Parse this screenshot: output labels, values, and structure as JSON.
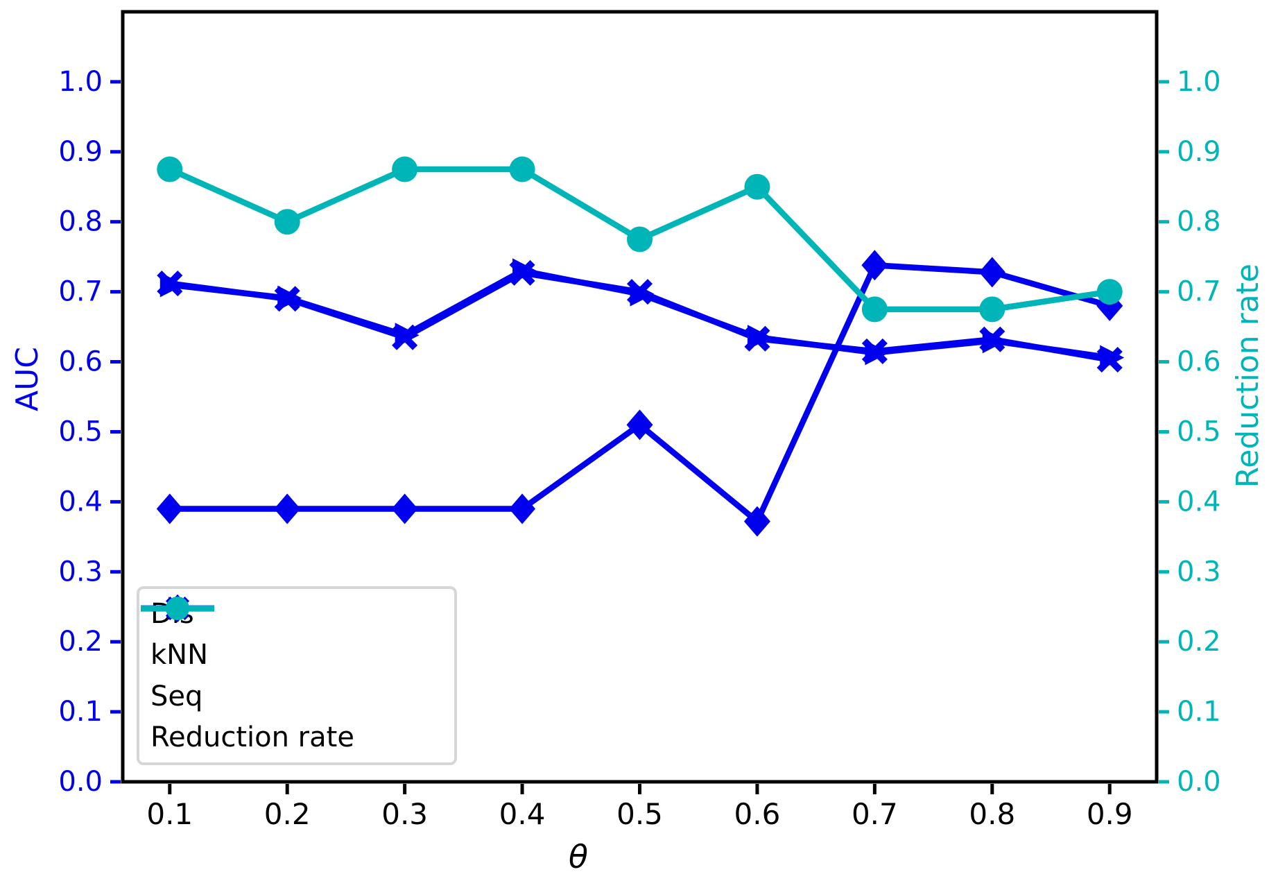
{
  "figure": {
    "background": "#ffffff",
    "spine_color": "#000000",
    "left_axis": {
      "label": "AUC",
      "color": "#0000ee",
      "tick_values": [
        0.0,
        0.1,
        0.2,
        0.3,
        0.4,
        0.5,
        0.6,
        0.7,
        0.8,
        0.9,
        1.0
      ],
      "tick_labels": [
        "0.0",
        "0.1",
        "0.2",
        "0.3",
        "0.4",
        "0.5",
        "0.6",
        "0.7",
        "0.8",
        "0.9",
        "1.0"
      ]
    },
    "right_axis": {
      "label": "Reduction rate",
      "color": "#00b5b8",
      "tick_values": [
        0.0,
        0.1,
        0.2,
        0.3,
        0.4,
        0.5,
        0.6,
        0.7,
        0.8,
        0.9,
        1.0
      ],
      "tick_labels": [
        "0.0",
        "0.1",
        "0.2",
        "0.3",
        "0.4",
        "0.5",
        "0.6",
        "0.7",
        "0.8",
        "0.9",
        "1.0"
      ]
    },
    "x_axis": {
      "label": "θ",
      "color": "#000000",
      "tick_values": [
        0.1,
        0.2,
        0.3,
        0.4,
        0.5,
        0.6,
        0.7,
        0.8,
        0.9
      ],
      "tick_labels": [
        "0.1",
        "0.2",
        "0.3",
        "0.4",
        "0.5",
        "0.6",
        "0.7",
        "0.8",
        "0.9"
      ]
    }
  },
  "chart_data": {
    "type": "line",
    "title": "",
    "xlabel": "θ",
    "ylabel_left": "AUC",
    "ylabel_right": "Reduction rate",
    "xlim": [
      0.06,
      0.94
    ],
    "ylim": [
      0.0,
      1.1
    ],
    "grid": false,
    "legend_position": "lower left",
    "x": [
      0.1,
      0.2,
      0.3,
      0.4,
      0.5,
      0.6,
      0.7,
      0.8,
      0.9
    ],
    "series": [
      {
        "name": "Dis",
        "axis": "left",
        "color": "#0000ee",
        "marker": "x",
        "values": [
          0.712,
          0.69,
          0.635,
          0.727,
          0.7,
          0.633,
          0.615,
          0.632,
          0.603
        ]
      },
      {
        "name": "kNN",
        "axis": "left",
        "color": "#0000ee",
        "marker": "triangle-right",
        "values": [
          0.71,
          0.691,
          0.638,
          0.73,
          0.697,
          0.635,
          0.613,
          0.63,
          0.606
        ]
      },
      {
        "name": "Seq",
        "axis": "left",
        "color": "#0000ee",
        "marker": "diamond",
        "values": [
          0.39,
          0.39,
          0.39,
          0.39,
          0.51,
          0.372,
          0.738,
          0.728,
          0.68
        ]
      },
      {
        "name": "Reduction rate",
        "axis": "right",
        "color": "#00b5b8",
        "marker": "circle",
        "values": [
          0.875,
          0.8,
          0.875,
          0.875,
          0.775,
          0.85,
          0.675,
          0.675,
          0.7
        ]
      }
    ]
  }
}
